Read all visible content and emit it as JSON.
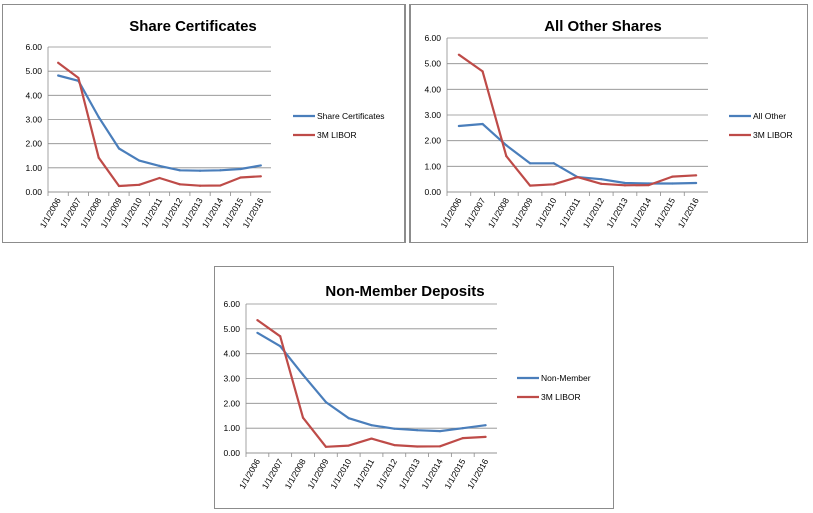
{
  "chart_data": [
    {
      "type": "line",
      "title": "Share Certificates",
      "categories": [
        "1/1/2006",
        "1/1/2007",
        "1/1/2008",
        "1/1/2009",
        "1/1/2010",
        "1/1/2011",
        "1/1/2012",
        "1/1/2013",
        "1/1/2014",
        "1/1/2015",
        "1/1/2016"
      ],
      "y_ticks": [
        "0.00",
        "1.00",
        "2.00",
        "3.00",
        "4.00",
        "5.00",
        "6.00"
      ],
      "ylim": [
        0,
        6
      ],
      "grid": true,
      "legend_position": "right",
      "series": [
        {
          "name": "Share Certificates",
          "color": "#4a7ebb",
          "values": [
            4.82,
            4.6,
            3.1,
            1.8,
            1.3,
            1.08,
            0.9,
            0.88,
            0.9,
            0.95,
            1.1
          ]
        },
        {
          "name": "3M LIBOR",
          "color": "#be4b48",
          "values": [
            5.35,
            4.72,
            1.42,
            0.25,
            0.3,
            0.58,
            0.32,
            0.26,
            0.27,
            0.6,
            0.65
          ]
        }
      ]
    },
    {
      "type": "line",
      "title": "All Other Shares",
      "categories": [
        "1/1/2006",
        "1/1/2007",
        "1/1/2008",
        "1/1/2009",
        "1/1/2010",
        "1/1/2011",
        "1/1/2012",
        "1/1/2013",
        "1/1/2014",
        "1/1/2015",
        "1/1/2016"
      ],
      "y_ticks": [
        "0.00",
        "1.00",
        "2.00",
        "3.00",
        "4.00",
        "5.00",
        "6.00"
      ],
      "ylim": [
        0,
        6
      ],
      "grid": true,
      "legend_position": "right",
      "series": [
        {
          "name": "All Other",
          "color": "#4a7ebb",
          "values": [
            2.57,
            2.65,
            1.82,
            1.12,
            1.12,
            0.58,
            0.5,
            0.35,
            0.33,
            0.33,
            0.35
          ]
        },
        {
          "name": "3M LIBOR",
          "color": "#be4b48",
          "values": [
            5.35,
            4.7,
            1.4,
            0.25,
            0.3,
            0.58,
            0.32,
            0.26,
            0.27,
            0.6,
            0.65
          ]
        }
      ]
    },
    {
      "type": "line",
      "title": "Non-Member Deposits",
      "categories": [
        "1/1/2006",
        "1/1/2007",
        "1/1/2008",
        "1/1/2009",
        "1/1/2010",
        "1/1/2011",
        "1/1/2012",
        "1/1/2013",
        "1/1/2014",
        "1/1/2015",
        "1/1/2016"
      ],
      "y_ticks": [
        "0.00",
        "1.00",
        "2.00",
        "3.00",
        "4.00",
        "5.00",
        "6.00"
      ],
      "ylim": [
        0,
        6
      ],
      "grid": true,
      "legend_position": "right",
      "series": [
        {
          "name": "Non-Member",
          "color": "#4a7ebb",
          "values": [
            4.84,
            4.3,
            3.15,
            2.05,
            1.4,
            1.12,
            0.98,
            0.92,
            0.88,
            1.0,
            1.12
          ]
        },
        {
          "name": "3M LIBOR",
          "color": "#be4b48",
          "values": [
            5.35,
            4.7,
            1.42,
            0.25,
            0.3,
            0.58,
            0.32,
            0.26,
            0.27,
            0.6,
            0.65
          ]
        }
      ]
    }
  ]
}
